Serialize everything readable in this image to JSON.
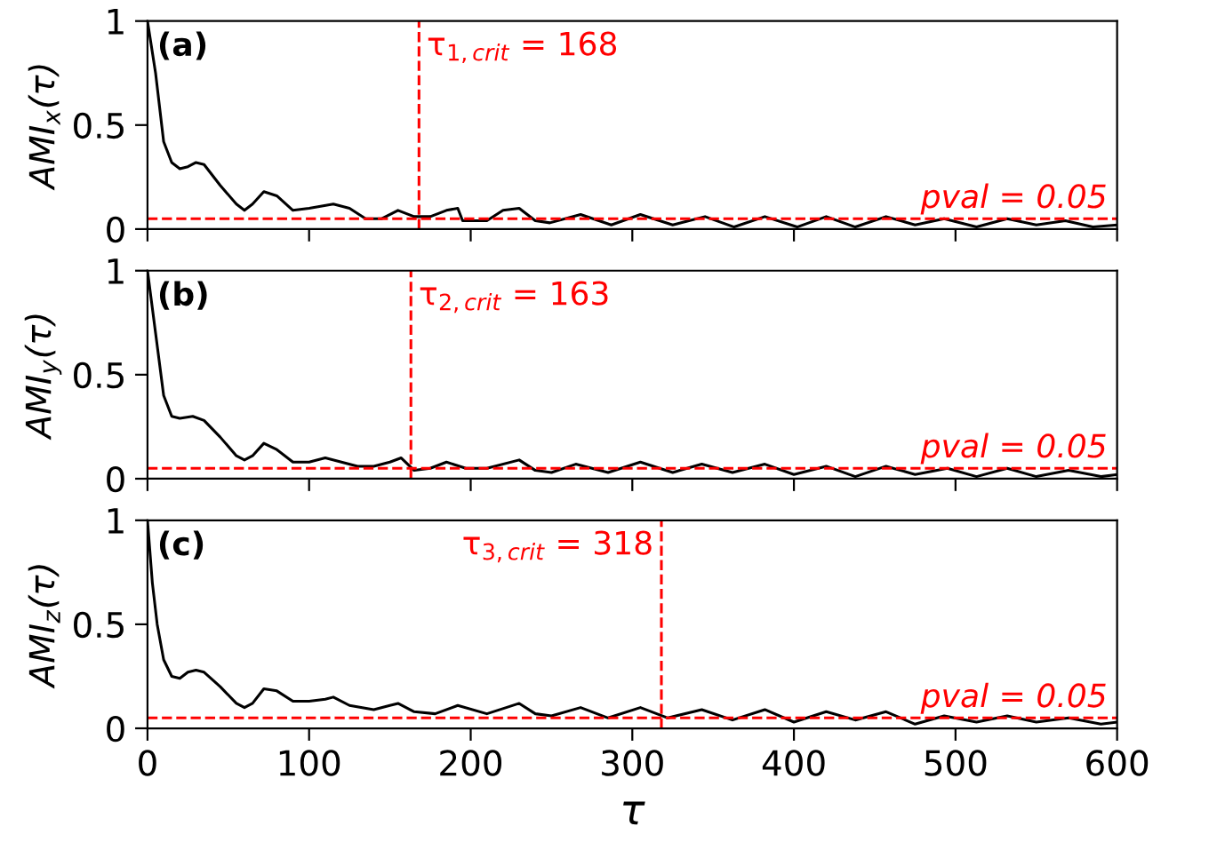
{
  "chart_data": [
    {
      "type": "line",
      "xlabel": null,
      "ylabel": "AMI$_{x}$(τ)",
      "annotations": [
        "(a)"
      ],
      "xlim": [
        0,
        600
      ],
      "ylim": [
        0,
        1
      ],
      "xticks": [
        0,
        100,
        200,
        300,
        400,
        500,
        600
      ],
      "yticks": [
        0,
        0.5,
        1
      ],
      "tick_labels": "y",
      "series": [
        {
          "color": "#000000",
          "x": [
            0,
            5,
            10,
            15,
            20,
            25,
            30,
            35,
            45,
            55,
            60,
            65,
            72,
            80,
            90,
            100,
            115,
            125,
            135,
            145,
            155,
            165,
            175,
            185,
            192,
            195,
            210,
            220,
            230,
            240,
            249,
            268,
            287,
            305,
            325,
            345,
            363,
            382,
            402,
            420,
            438,
            457,
            475,
            493,
            513,
            532,
            550,
            568,
            585,
            600
          ],
          "values": [
            1.0,
            0.75,
            0.42,
            0.32,
            0.29,
            0.3,
            0.32,
            0.31,
            0.21,
            0.12,
            0.09,
            0.12,
            0.18,
            0.16,
            0.09,
            0.1,
            0.12,
            0.1,
            0.05,
            0.05,
            0.09,
            0.06,
            0.06,
            0.09,
            0.1,
            0.04,
            0.04,
            0.09,
            0.1,
            0.04,
            0.03,
            0.07,
            0.02,
            0.07,
            0.02,
            0.06,
            0.01,
            0.06,
            0.01,
            0.06,
            0.01,
            0.06,
            0.02,
            0.05,
            0.01,
            0.05,
            0.02,
            0.04,
            0.01,
            0.02
          ]
        }
      ],
      "ref_lines": [
        {
          "axis": "x",
          "value": 168,
          "label": "τ$_{1,crit}$ = 168",
          "color": "#ff0000",
          "line_style": "dashed"
        },
        {
          "axis": "y",
          "value": 0.05,
          "label": "pval = 0.05",
          "color": "#ff0000",
          "line_style": "dashed"
        }
      ]
    },
    {
      "type": "line",
      "ylabel": "AMI$_{y}$(τ)",
      "annotations": [
        "(b)"
      ],
      "xlim": [
        0,
        600
      ],
      "ylim": [
        0,
        1
      ],
      "xticks": [
        0,
        100,
        200,
        300,
        400,
        500,
        600
      ],
      "yticks": [
        0,
        0.5,
        1
      ],
      "tick_labels": "y",
      "series": [
        {
          "color": "#000000",
          "x": [
            0,
            5,
            10,
            15,
            20,
            28,
            35,
            45,
            55,
            60,
            65,
            72,
            80,
            90,
            100,
            110,
            120,
            130,
            140,
            150,
            157,
            165,
            175,
            185,
            197,
            210,
            230,
            240,
            250,
            265,
            285,
            305,
            325,
            343,
            362,
            382,
            400,
            420,
            438,
            457,
            475,
            495,
            513,
            532,
            550,
            570,
            590,
            600
          ],
          "values": [
            1.0,
            0.7,
            0.4,
            0.3,
            0.29,
            0.3,
            0.28,
            0.2,
            0.11,
            0.09,
            0.11,
            0.17,
            0.14,
            0.08,
            0.08,
            0.1,
            0.08,
            0.06,
            0.06,
            0.08,
            0.1,
            0.04,
            0.05,
            0.08,
            0.05,
            0.05,
            0.09,
            0.04,
            0.03,
            0.07,
            0.03,
            0.08,
            0.03,
            0.07,
            0.03,
            0.07,
            0.02,
            0.06,
            0.01,
            0.06,
            0.02,
            0.05,
            0.01,
            0.05,
            0.01,
            0.04,
            0.01,
            0.02
          ]
        }
      ],
      "ref_lines": [
        {
          "axis": "x",
          "value": 163,
          "label": "τ$_{2,crit}$ = 163",
          "color": "#ff0000",
          "line_style": "dashed"
        },
        {
          "axis": "y",
          "value": 0.05,
          "label": "pval = 0.05",
          "color": "#ff0000",
          "line_style": "dashed"
        }
      ]
    },
    {
      "type": "line",
      "xlabel": "τ",
      "ylabel": "AMI$_{z}$(τ)",
      "annotations": [
        "(c)"
      ],
      "xlim": [
        0,
        600
      ],
      "ylim": [
        0,
        1
      ],
      "xticks": [
        0,
        100,
        200,
        300,
        400,
        500,
        600
      ],
      "yticks": [
        0,
        0.5,
        1
      ],
      "series": [
        {
          "color": "#000000",
          "x": [
            0,
            3,
            6,
            10,
            15,
            20,
            25,
            30,
            35,
            45,
            55,
            60,
            65,
            72,
            80,
            90,
            100,
            110,
            115,
            125,
            140,
            150,
            155,
            165,
            178,
            192,
            210,
            222,
            230,
            240,
            250,
            268,
            285,
            305,
            322,
            343,
            362,
            382,
            400,
            420,
            438,
            457,
            475,
            493,
            513,
            532,
            550,
            570,
            590,
            600
          ],
          "values": [
            1.0,
            0.7,
            0.5,
            0.33,
            0.25,
            0.24,
            0.27,
            0.28,
            0.27,
            0.2,
            0.12,
            0.1,
            0.12,
            0.19,
            0.18,
            0.13,
            0.13,
            0.14,
            0.15,
            0.11,
            0.09,
            0.11,
            0.12,
            0.08,
            0.07,
            0.11,
            0.07,
            0.1,
            0.12,
            0.07,
            0.06,
            0.1,
            0.05,
            0.1,
            0.05,
            0.09,
            0.04,
            0.09,
            0.03,
            0.08,
            0.04,
            0.08,
            0.02,
            0.06,
            0.03,
            0.06,
            0.03,
            0.05,
            0.02,
            0.03
          ]
        }
      ],
      "ref_lines": [
        {
          "axis": "x",
          "value": 318,
          "label": "τ$_{3,crit}$ = 318",
          "color": "#ff0000",
          "line_style": "dashed"
        },
        {
          "axis": "y",
          "value": 0.05,
          "label": "pval = 0.05",
          "color": "#ff0000",
          "line_style": "dashed"
        }
      ]
    }
  ]
}
